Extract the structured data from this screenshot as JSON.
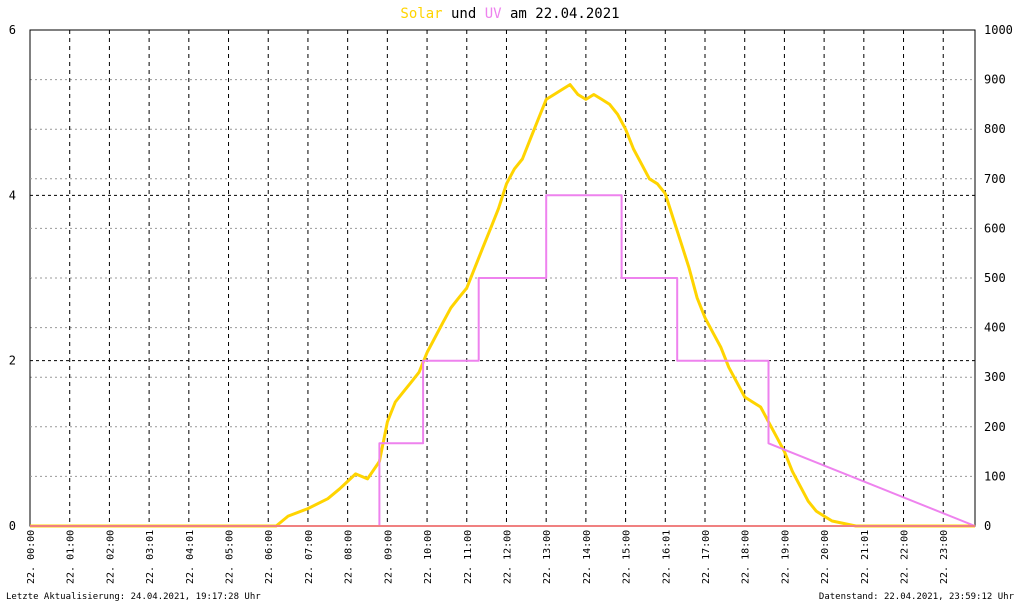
{
  "title": {
    "part1": "Solar",
    "part2": " und ",
    "part3": "UV",
    "part4": " am 22.04.2021",
    "color_solar": "#ffd400",
    "color_uv": "#ee82ee",
    "color_text": "#000000"
  },
  "footer": {
    "left": "Letzte Aktualisierung: 24.04.2021, 19:17:28 Uhr",
    "right": "Datenstand: 22.04.2021, 23:59:12 Uhr"
  },
  "chart_data": {
    "type": "line",
    "title": "Solar und UV am 22.04.2021",
    "grid": true,
    "x_unit": "hour",
    "xlim": [
      0,
      23.8
    ],
    "x_tick_labels": [
      "22. 00:00",
      "22. 01:00",
      "22. 02:00",
      "22. 03:01",
      "22. 04:01",
      "22. 05:00",
      "22. 06:00",
      "22. 07:00",
      "22. 08:00",
      "22. 09:00",
      "22. 10:00",
      "22. 11:00",
      "22. 12:00",
      "22. 13:00",
      "22. 14:00",
      "22. 15:00",
      "22. 16:01",
      "22. 17:00",
      "22. 18:00",
      "22. 19:00",
      "22. 20:00",
      "22. 21:01",
      "22. 22:00",
      "22. 23:00"
    ],
    "y_left": {
      "range": [
        0,
        6
      ],
      "ticks": [
        0,
        2,
        4,
        6
      ]
    },
    "y_right": {
      "range": [
        0,
        1000
      ],
      "ticks": [
        0,
        100,
        200,
        300,
        400,
        500,
        600,
        700,
        800,
        900,
        1000
      ]
    },
    "series": [
      {
        "name": "Solar",
        "axis": "right",
        "color": "#ffd400",
        "x": [
          0,
          6.2,
          6.5,
          7.0,
          7.5,
          7.8,
          8.0,
          8.2,
          8.5,
          8.8,
          9.0,
          9.2,
          9.4,
          9.6,
          9.8,
          10.0,
          10.2,
          10.4,
          10.6,
          10.8,
          11.0,
          11.2,
          11.4,
          11.6,
          11.8,
          12.0,
          12.2,
          12.4,
          12.6,
          12.8,
          13.0,
          13.2,
          13.4,
          13.6,
          13.8,
          14.0,
          14.2,
          14.4,
          14.6,
          14.8,
          15.0,
          15.2,
          15.4,
          15.6,
          15.8,
          16.0,
          16.2,
          16.4,
          16.6,
          16.8,
          17.0,
          17.2,
          17.4,
          17.6,
          17.8,
          18.0,
          18.2,
          18.4,
          18.6,
          18.8,
          19.0,
          19.2,
          19.4,
          19.6,
          19.8,
          20.0,
          20.2,
          20.5,
          20.8,
          23.8
        ],
        "y": [
          0,
          0,
          20,
          35,
          55,
          75,
          90,
          105,
          95,
          130,
          210,
          250,
          270,
          290,
          310,
          350,
          380,
          410,
          440,
          460,
          480,
          520,
          560,
          600,
          640,
          690,
          720,
          740,
          780,
          820,
          860,
          870,
          880,
          890,
          870,
          860,
          870,
          860,
          850,
          830,
          800,
          760,
          730,
          700,
          690,
          670,
          620,
          570,
          520,
          460,
          420,
          390,
          360,
          320,
          290,
          260,
          250,
          240,
          210,
          180,
          150,
          110,
          80,
          50,
          30,
          20,
          10,
          5,
          0,
          0
        ]
      },
      {
        "name": "UV",
        "axis": "left",
        "color": "#ee82ee",
        "x": [
          0,
          8.8,
          8.8,
          9.9,
          9.9,
          11.3,
          11.3,
          12.6,
          12.6,
          13.0,
          13.0,
          14.9,
          14.9,
          16.3,
          16.3,
          18.6,
          18.6,
          23.8
        ],
        "y": [
          0,
          0,
          1,
          1,
          2,
          2,
          3,
          3,
          3,
          3,
          4,
          4,
          3,
          3,
          2,
          2,
          1,
          0
        ]
      },
      {
        "name": "",
        "axis": "left",
        "color": "#f08080",
        "x": [
          0,
          23.8
        ],
        "y": [
          0,
          0
        ]
      }
    ]
  }
}
